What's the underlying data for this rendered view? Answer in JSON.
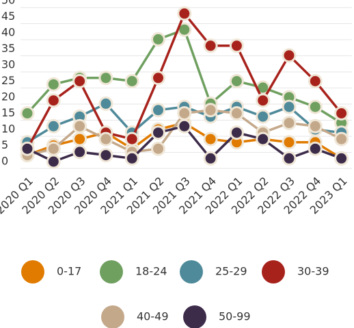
{
  "chart_data": {
    "type": "line",
    "categories": [
      "2020 Q1",
      "2020 Q2",
      "2020 Q3",
      "2020 Q4",
      "2021 Q1",
      "2021 Q2",
      "2021 Q3",
      "2021 Q4",
      "2022 Q1",
      "2022 Q2",
      "2022 Q3",
      "2022 Q4",
      "2023 Q1"
    ],
    "series": [
      {
        "name": "0-17",
        "color": "#e07b00",
        "values": [
          2,
          5,
          7,
          9,
          4,
          10,
          12,
          7,
          6,
          7,
          6,
          6,
          1
        ]
      },
      {
        "name": "18-24",
        "color": "#6fa060",
        "values": [
          15,
          24,
          26,
          26,
          25,
          38,
          41,
          18,
          25,
          23,
          20,
          17,
          12
        ]
      },
      {
        "name": "25-29",
        "color": "#4f8a9a",
        "values": [
          6,
          11,
          14,
          18,
          9,
          16,
          17,
          14,
          17,
          14,
          17,
          10,
          9
        ]
      },
      {
        "name": "30-39",
        "color": "#a8221c",
        "values": [
          4,
          19,
          25,
          9,
          7,
          26,
          46,
          36,
          36,
          19,
          33,
          25,
          15
        ]
      },
      {
        "name": "40-49",
        "color": "#c4a88a",
        "values": [
          2,
          4,
          11,
          7,
          3,
          4,
          15,
          16,
          15,
          9,
          12,
          11,
          7
        ]
      },
      {
        "name": "50-99",
        "color": "#3d2b4a",
        "values": [
          4,
          0,
          3,
          2,
          1,
          9,
          11,
          1,
          9,
          7,
          1,
          4,
          1
        ]
      }
    ],
    "ylim": [
      0,
      50
    ],
    "yticks": [
      0,
      5,
      10,
      15,
      20,
      25,
      30,
      35,
      40,
      45,
      50
    ],
    "grid": true
  }
}
